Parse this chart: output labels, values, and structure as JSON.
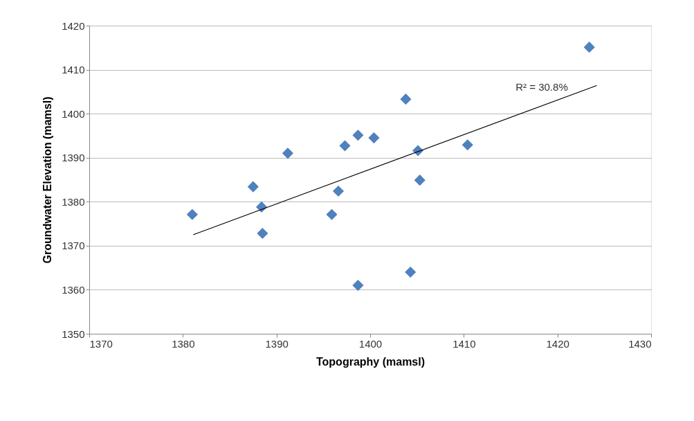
{
  "chart_data": {
    "type": "scatter",
    "xlabel": "Topography (mamsl)",
    "ylabel": "Groundwater Elevation (mamsl)",
    "xlim": [
      1370,
      1430
    ],
    "xticks": [
      1370,
      1380,
      1390,
      1400,
      1410,
      1420,
      1430
    ],
    "ylim": [
      1350,
      1420
    ],
    "yticks": [
      1350,
      1360,
      1370,
      1380,
      1390,
      1400,
      1410,
      1420
    ],
    "grid": "y",
    "series": [
      {
        "type": "scatter",
        "marker": "diamond",
        "color": "#4f81bd",
        "x": [
          1423.4,
          1403.8,
          1398.7,
          1400.4,
          1397.3,
          1391.2,
          1405.1,
          1410.4,
          1405.3,
          1387.5,
          1396.6,
          1381.0,
          1388.4,
          1395.9,
          1388.5,
          1398.7,
          1404.3
        ],
        "values": [
          1415.1,
          1403.3,
          1395.1,
          1394.5,
          1392.7,
          1391.0,
          1391.6,
          1392.9,
          1384.9,
          1383.4,
          1382.4,
          1377.1,
          1378.8,
          1377.1,
          1372.8,
          1361.0,
          1364.0
        ]
      },
      {
        "type": "line",
        "color": "#000000",
        "x": [
          1381.1,
          1424.2
        ],
        "values": [
          1372.5,
          1406.4
        ]
      }
    ],
    "annotations": [
      "R² = 30.8%"
    ]
  }
}
